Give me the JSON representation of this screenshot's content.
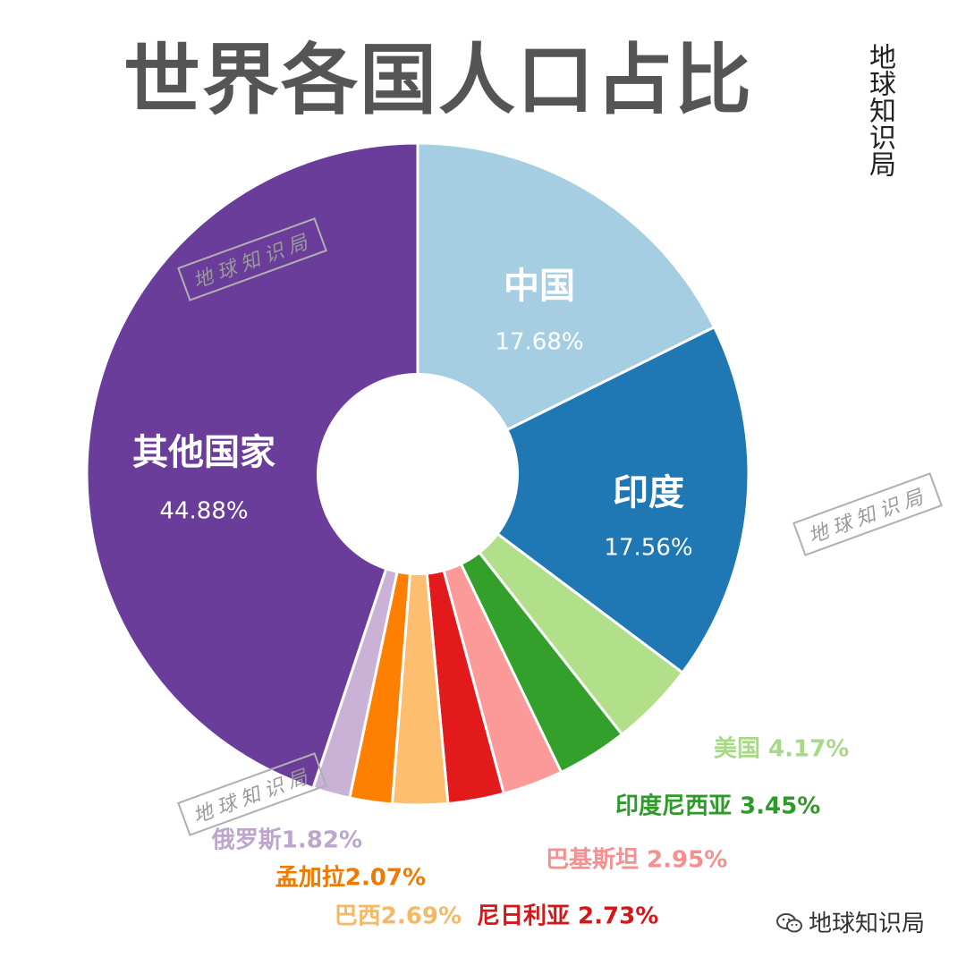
{
  "header": {
    "title": "世界各国人口占比",
    "brand_vertical": "地球知识局"
  },
  "watermarks": [
    {
      "text": "地球知识局"
    },
    {
      "text": "地球知识局"
    },
    {
      "text": "地球知识局"
    }
  ],
  "footer": {
    "brand": "地球知识局",
    "icon": "wechat-icon"
  },
  "chart_data": {
    "type": "pie",
    "donut": true,
    "title": "世界各国人口占比",
    "unit": "%",
    "slices": [
      {
        "label": "中国",
        "value": 17.68,
        "pct_text": "17.68%",
        "color": "#a6cee3",
        "placement": "inside"
      },
      {
        "label": "印度",
        "value": 17.56,
        "pct_text": "17.56%",
        "color": "#1f78b4",
        "placement": "inside"
      },
      {
        "label": "美国",
        "value": 4.17,
        "pct_text": "4.17%",
        "color": "#b2df8a",
        "text_color": "#a8d98a",
        "placement": "outside"
      },
      {
        "label": "印度尼西亚",
        "value": 3.45,
        "pct_text": "3.45%",
        "color": "#33a02c",
        "text_color": "#2e9a2a",
        "placement": "outside"
      },
      {
        "label": "巴基斯坦",
        "value": 2.95,
        "pct_text": "2.95%",
        "color": "#fb9a99",
        "text_color": "#f4908f",
        "placement": "outside"
      },
      {
        "label": "尼日利亚",
        "value": 2.73,
        "pct_text": "2.73%",
        "color": "#e31a1c",
        "text_color": "#d41719",
        "placement": "outside"
      },
      {
        "label": "巴西",
        "value": 2.69,
        "pct_text": "2.69%",
        "color": "#fdbf6f",
        "text_color": "#f5b865",
        "placement": "outside"
      },
      {
        "label": "孟加拉",
        "value": 2.07,
        "pct_text": "2.07%",
        "color": "#ff7f00",
        "text_color": "#ee7a00",
        "placement": "outside"
      },
      {
        "label": "俄罗斯",
        "value": 1.82,
        "pct_text": "1.82%",
        "color": "#cab2d6",
        "text_color": "#bda6cc",
        "placement": "outside"
      },
      {
        "label": "其他国家",
        "value": 44.88,
        "pct_text": "44.88%",
        "color": "#6a3d9a",
        "placement": "inside"
      }
    ],
    "legend": "none"
  }
}
